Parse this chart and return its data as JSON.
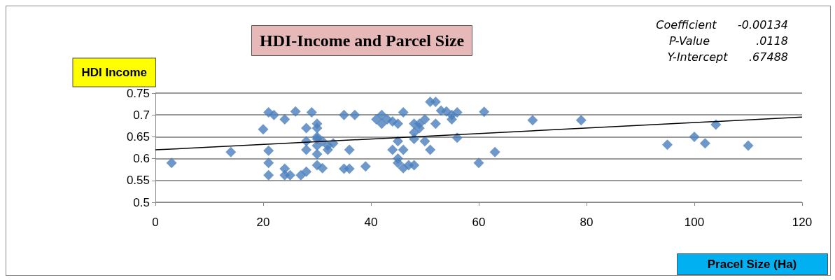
{
  "chart_data": {
    "type": "scatter",
    "title": "HDI-Income and Parcel Size",
    "xlabel": "Pracel Size (Ha)",
    "ylabel": "HDI Income",
    "annotations": [
      "Coefficient      -0.00134",
      "P-Value             .0118",
      "Y-Intercept      .67488"
    ],
    "xlim": [
      0,
      120
    ],
    "xticks": [
      0,
      20,
      40,
      60,
      80,
      100,
      120
    ],
    "ylim": [
      0.5,
      0.75
    ],
    "yticks": [
      0.5,
      0.55,
      0.6,
      0.65,
      0.7,
      0.75
    ],
    "grid": "y",
    "series": [
      {
        "type": "scatter",
        "color": "#4a7ebb",
        "marker": "diamond",
        "x": [
          3,
          14,
          20,
          21,
          22,
          21,
          21,
          21,
          24,
          24,
          24,
          25,
          26,
          27,
          28,
          28,
          28,
          28,
          29,
          30,
          30,
          30,
          30,
          30,
          30,
          30,
          31,
          31,
          32,
          32,
          33,
          35,
          35,
          36,
          36,
          37,
          39,
          41,
          42,
          42,
          43,
          44,
          44,
          45,
          45,
          45,
          45,
          46,
          46,
          46,
          47,
          48,
          48,
          48,
          48,
          49,
          49,
          50,
          50,
          51,
          51,
          52,
          52,
          53,
          54,
          55,
          55,
          56,
          56,
          60,
          61,
          63,
          70,
          79,
          95,
          100,
          102,
          104,
          110
        ],
        "values": [
          0.59,
          0.615,
          0.667,
          0.706,
          0.7,
          0.618,
          0.59,
          0.562,
          0.69,
          0.577,
          0.562,
          0.562,
          0.708,
          0.562,
          0.57,
          0.67,
          0.62,
          0.64,
          0.706,
          0.68,
          0.67,
          0.65,
          0.645,
          0.63,
          0.61,
          0.585,
          0.578,
          0.64,
          0.62,
          0.63,
          0.635,
          0.7,
          0.577,
          0.62,
          0.577,
          0.7,
          0.582,
          0.69,
          0.7,
          0.68,
          0.69,
          0.685,
          0.62,
          0.68,
          0.64,
          0.6,
          0.59,
          0.706,
          0.62,
          0.578,
          0.585,
          0.66,
          0.645,
          0.68,
          0.585,
          0.67,
          0.68,
          0.69,
          0.64,
          0.73,
          0.62,
          0.73,
          0.68,
          0.71,
          0.708,
          0.69,
          0.7,
          0.706,
          0.648,
          0.59,
          0.707,
          0.615,
          0.688,
          0.688,
          0.632,
          0.65,
          0.635,
          0.678,
          0.63
        ]
      },
      {
        "type": "line",
        "color": "#000000",
        "marker": "none",
        "line_style": "solid",
        "x": [
          0,
          120
        ],
        "values": [
          0.62,
          0.695
        ]
      }
    ]
  }
}
